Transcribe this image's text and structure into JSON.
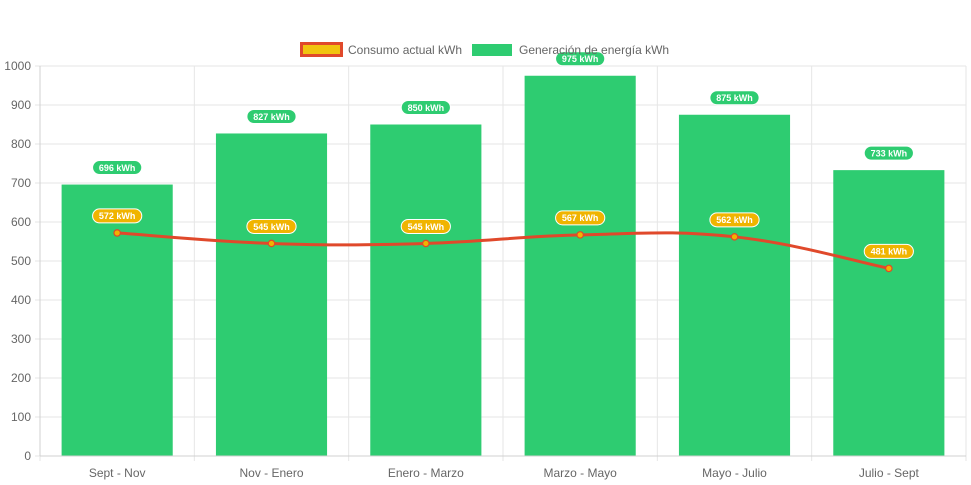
{
  "chart_data": {
    "type": "bar",
    "categories": [
      "Sept - Nov",
      "Nov - Enero",
      "Enero - Marzo",
      "Marzo - Mayo",
      "Mayo - Julio",
      "Julio - Sept"
    ],
    "series": [
      {
        "name": "Consumo actual kWh",
        "chart_type": "line",
        "values": [
          572,
          545,
          545,
          567,
          562,
          481
        ],
        "data_labels": [
          "572 kWh",
          "545 kWh",
          "545 kWh",
          "567 kWh",
          "562 kWh",
          "481 kWh"
        ],
        "color": "#e0492b",
        "label_color": "#f0b400"
      },
      {
        "name": "Generación de energía kWh",
        "chart_type": "bar",
        "values": [
          696,
          827,
          850,
          975,
          875,
          733
        ],
        "data_labels": [
          "696 kWh",
          "827 kWh",
          "850 kWh",
          "975 kWh",
          "875 kWh",
          "733 kWh"
        ],
        "color": "#2ecc71",
        "label_color": "#2ecc71"
      }
    ],
    "legend_position": "top-center",
    "legend_swatch_colors": [
      "#f1c40f",
      "#2ecc71"
    ],
    "legend_swatch_border": "#e0492b",
    "ylim": [
      0,
      1000
    ],
    "yticks": [
      "0",
      "100",
      "200",
      "300",
      "400",
      "500",
      "600",
      "700",
      "800",
      "900",
      "1000"
    ],
    "grid": true
  }
}
